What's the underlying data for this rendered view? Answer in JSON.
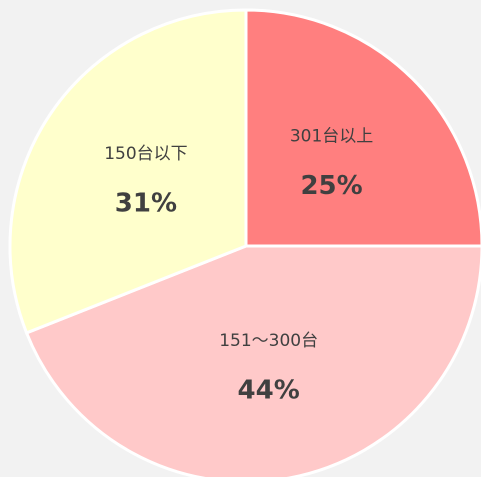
{
  "chart_data": {
    "type": "pie",
    "categories": [
      "301台以上",
      "151～300台",
      "150台以下"
    ],
    "values": [
      25,
      44,
      31
    ],
    "value_labels": [
      "25%",
      "44%",
      "31%"
    ],
    "colors": [
      "#ff7f7f",
      "#ffc9c9",
      "#ffffcc"
    ]
  }
}
